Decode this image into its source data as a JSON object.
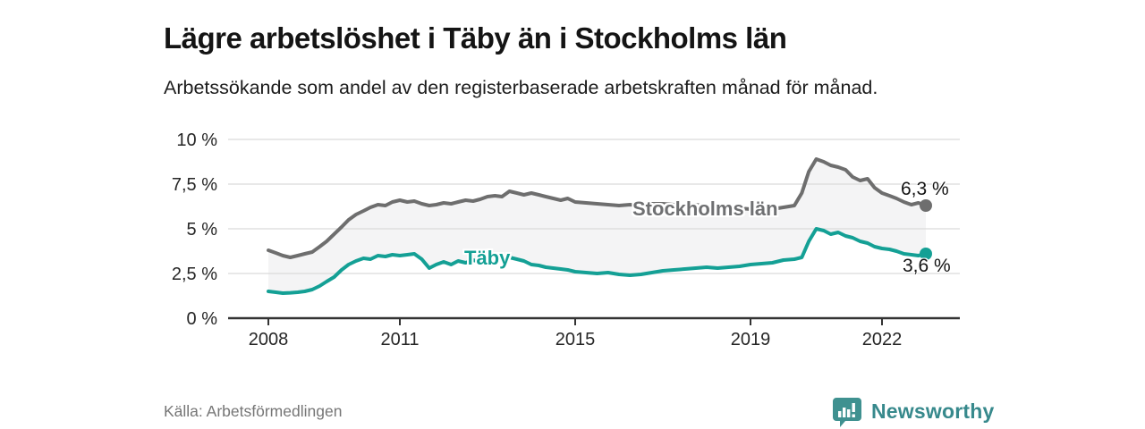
{
  "header": {
    "title": "Lägre arbetslöshet i Täby än i Stockholms län",
    "subtitle": "Arbetssökande som andel av den registerbaserade arbetskraften månad för månad."
  },
  "footer": {
    "source": "Källa: Arbetsförmedlingen",
    "brand": "Newsworthy",
    "brand_icon": "bar-chart-speech-bubble-icon",
    "brand_color": "#37898c",
    "brand_icon_color": "#3f9190"
  },
  "colors": {
    "stockholm_line": "#6e6e6e",
    "stockholm_label": "#6f7072",
    "taby_line": "#14a095",
    "axis": "#333333",
    "gridline": "#dbdbdb",
    "band_fill": "rgba(120,120,130,0.08)",
    "text": "#141414"
  },
  "chart_data": {
    "type": "line",
    "title": "Lägre arbetslöshet i Täby än i Stockholms län",
    "xlabel": "",
    "ylabel": "",
    "x_range": [
      2008,
      2023
    ],
    "y_range": [
      0,
      10
    ],
    "grid": true,
    "x_ticks": [
      2008,
      2011,
      2015,
      2019,
      2022
    ],
    "x_tick_labels": [
      "2008",
      "2011",
      "2015",
      "2019",
      "2022"
    ],
    "y_ticks": [
      0,
      2.5,
      5,
      7.5,
      10
    ],
    "y_tick_labels": [
      "0 %",
      "2,5 %",
      "5 %",
      "7,5 %",
      "10 %"
    ],
    "band_fill_between_series": true,
    "series": [
      {
        "name": "Stockholms län",
        "color": "#6e6e6e",
        "end_label": "6,3 %",
        "end_value": 6.3,
        "points": [
          [
            2008,
            3.8
          ],
          [
            2008.17,
            3.65
          ],
          [
            2008.33,
            3.5
          ],
          [
            2008.5,
            3.4
          ],
          [
            2008.67,
            3.5
          ],
          [
            2008.83,
            3.6
          ],
          [
            2009,
            3.7
          ],
          [
            2009.17,
            4.0
          ],
          [
            2009.33,
            4.3
          ],
          [
            2009.5,
            4.7
          ],
          [
            2009.67,
            5.1
          ],
          [
            2009.83,
            5.5
          ],
          [
            2010,
            5.8
          ],
          [
            2010.17,
            6.0
          ],
          [
            2010.33,
            6.2
          ],
          [
            2010.5,
            6.35
          ],
          [
            2010.67,
            6.3
          ],
          [
            2010.83,
            6.5
          ],
          [
            2011,
            6.6
          ],
          [
            2011.17,
            6.5
          ],
          [
            2011.33,
            6.55
          ],
          [
            2011.5,
            6.4
          ],
          [
            2011.67,
            6.3
          ],
          [
            2011.83,
            6.35
          ],
          [
            2012,
            6.45
          ],
          [
            2012.17,
            6.4
          ],
          [
            2012.33,
            6.5
          ],
          [
            2012.5,
            6.6
          ],
          [
            2012.67,
            6.55
          ],
          [
            2012.83,
            6.65
          ],
          [
            2013,
            6.8
          ],
          [
            2013.17,
            6.85
          ],
          [
            2013.33,
            6.8
          ],
          [
            2013.5,
            7.1
          ],
          [
            2013.67,
            7.0
          ],
          [
            2013.83,
            6.9
          ],
          [
            2014,
            7.0
          ],
          [
            2014.17,
            6.9
          ],
          [
            2014.33,
            6.8
          ],
          [
            2014.5,
            6.7
          ],
          [
            2014.67,
            6.6
          ],
          [
            2014.83,
            6.7
          ],
          [
            2015,
            6.5
          ],
          [
            2015.25,
            6.45
          ],
          [
            2015.5,
            6.4
          ],
          [
            2015.75,
            6.35
          ],
          [
            2016,
            6.3
          ],
          [
            2016.25,
            6.35
          ],
          [
            2016.5,
            6.3
          ],
          [
            2016.75,
            6.4
          ],
          [
            2017,
            6.4
          ],
          [
            2017.25,
            6.35
          ],
          [
            2017.5,
            6.3
          ],
          [
            2017.75,
            6.35
          ],
          [
            2018,
            6.25
          ],
          [
            2018.25,
            6.2
          ],
          [
            2018.5,
            6.25
          ],
          [
            2018.75,
            6.15
          ],
          [
            2019,
            6.1
          ],
          [
            2019.25,
            6.15
          ],
          [
            2019.5,
            6.1
          ],
          [
            2019.75,
            6.2
          ],
          [
            2020,
            6.3
          ],
          [
            2020.17,
            7.0
          ],
          [
            2020.33,
            8.2
          ],
          [
            2020.5,
            8.9
          ],
          [
            2020.67,
            8.75
          ],
          [
            2020.83,
            8.55
          ],
          [
            2021,
            8.45
          ],
          [
            2021.17,
            8.3
          ],
          [
            2021.33,
            7.9
          ],
          [
            2021.5,
            7.7
          ],
          [
            2021.67,
            7.8
          ],
          [
            2021.83,
            7.3
          ],
          [
            2022,
            7.0
          ],
          [
            2022.17,
            6.85
          ],
          [
            2022.33,
            6.7
          ],
          [
            2022.5,
            6.5
          ],
          [
            2022.67,
            6.35
          ],
          [
            2022.83,
            6.45
          ],
          [
            2023,
            6.3
          ]
        ]
      },
      {
        "name": "Täby",
        "color": "#14a095",
        "end_label": "3,6 %",
        "end_value": 3.6,
        "points": [
          [
            2008,
            1.5
          ],
          [
            2008.17,
            1.45
          ],
          [
            2008.33,
            1.4
          ],
          [
            2008.5,
            1.42
          ],
          [
            2008.67,
            1.45
          ],
          [
            2008.83,
            1.5
          ],
          [
            2009,
            1.6
          ],
          [
            2009.17,
            1.8
          ],
          [
            2009.33,
            2.05
          ],
          [
            2009.5,
            2.3
          ],
          [
            2009.67,
            2.7
          ],
          [
            2009.83,
            3.0
          ],
          [
            2010,
            3.2
          ],
          [
            2010.17,
            3.35
          ],
          [
            2010.33,
            3.3
          ],
          [
            2010.5,
            3.5
          ],
          [
            2010.67,
            3.45
          ],
          [
            2010.83,
            3.55
          ],
          [
            2011,
            3.5
          ],
          [
            2011.17,
            3.55
          ],
          [
            2011.33,
            3.6
          ],
          [
            2011.5,
            3.3
          ],
          [
            2011.67,
            2.8
          ],
          [
            2011.83,
            3.0
          ],
          [
            2012,
            3.15
          ],
          [
            2012.17,
            3.0
          ],
          [
            2012.33,
            3.2
          ],
          [
            2012.5,
            3.1
          ],
          [
            2012.67,
            3.25
          ],
          [
            2012.83,
            3.15
          ],
          [
            2013,
            3.3
          ],
          [
            2013.17,
            3.25
          ],
          [
            2013.33,
            3.35
          ],
          [
            2013.5,
            3.4
          ],
          [
            2013.67,
            3.3
          ],
          [
            2013.83,
            3.2
          ],
          [
            2014,
            3.0
          ],
          [
            2014.17,
            2.95
          ],
          [
            2014.33,
            2.85
          ],
          [
            2014.5,
            2.8
          ],
          [
            2014.67,
            2.75
          ],
          [
            2014.83,
            2.7
          ],
          [
            2015,
            2.6
          ],
          [
            2015.25,
            2.55
          ],
          [
            2015.5,
            2.5
          ],
          [
            2015.75,
            2.55
          ],
          [
            2016,
            2.45
          ],
          [
            2016.25,
            2.4
          ],
          [
            2016.5,
            2.45
          ],
          [
            2016.75,
            2.55
          ],
          [
            2017,
            2.65
          ],
          [
            2017.25,
            2.7
          ],
          [
            2017.5,
            2.75
          ],
          [
            2017.75,
            2.8
          ],
          [
            2018,
            2.85
          ],
          [
            2018.25,
            2.8
          ],
          [
            2018.5,
            2.85
          ],
          [
            2018.75,
            2.9
          ],
          [
            2019,
            3.0
          ],
          [
            2019.25,
            3.05
          ],
          [
            2019.5,
            3.1
          ],
          [
            2019.75,
            3.25
          ],
          [
            2020,
            3.3
          ],
          [
            2020.17,
            3.4
          ],
          [
            2020.33,
            4.3
          ],
          [
            2020.5,
            5.0
          ],
          [
            2020.67,
            4.9
          ],
          [
            2020.83,
            4.7
          ],
          [
            2021,
            4.8
          ],
          [
            2021.17,
            4.6
          ],
          [
            2021.33,
            4.5
          ],
          [
            2021.5,
            4.3
          ],
          [
            2021.67,
            4.2
          ],
          [
            2021.83,
            4.0
          ],
          [
            2022,
            3.9
          ],
          [
            2022.17,
            3.85
          ],
          [
            2022.33,
            3.75
          ],
          [
            2022.5,
            3.6
          ],
          [
            2022.67,
            3.55
          ],
          [
            2022.83,
            3.5
          ],
          [
            2023,
            3.6
          ]
        ]
      }
    ]
  }
}
